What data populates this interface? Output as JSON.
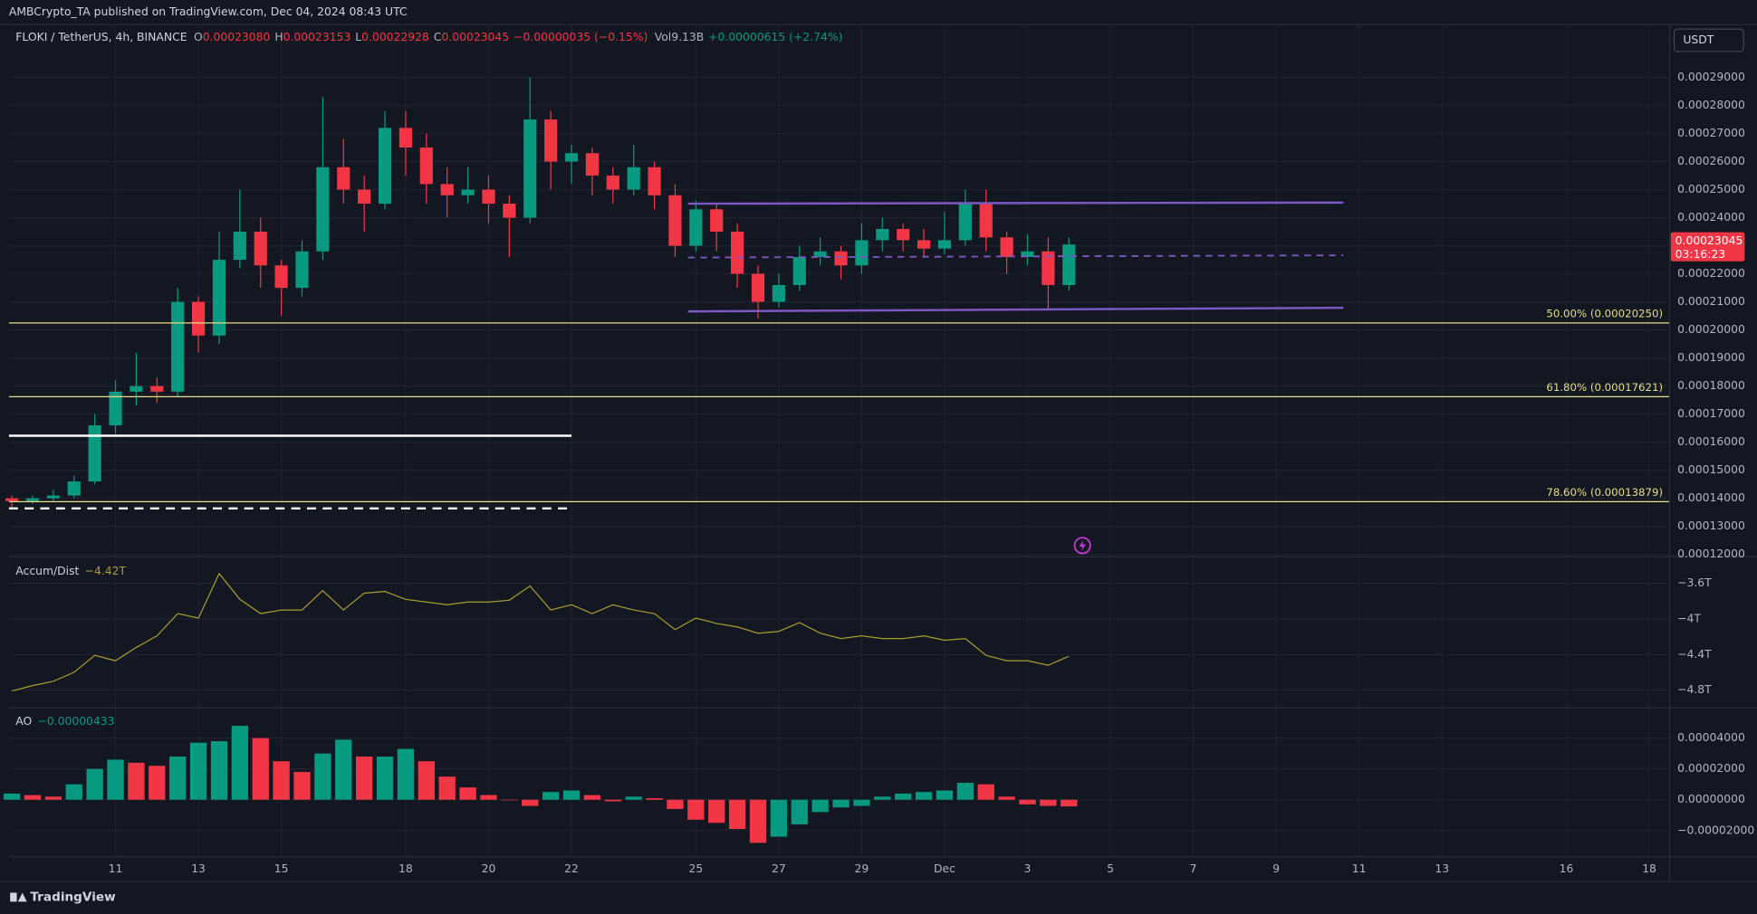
{
  "header": {
    "text": "AMBCrypto_TA published on TradingView.com, Dec 04, 2024 08:43 UTC"
  },
  "footer": {
    "brand": "TradingView"
  },
  "chart_data": [
    {
      "type": "candlestick",
      "symbol": "FLOKI / TetherUS, 4h, BINANCE",
      "ohlc": [
        {
          "key": "O",
          "value": "0.00023080"
        },
        {
          "key": "H",
          "value": "0.00023153"
        },
        {
          "key": "L",
          "value": "0.00022928"
        },
        {
          "key": "C",
          "value": "0.00023045"
        }
      ],
      "change": "−0.00000035 (−0.15%)",
      "volume": {
        "key": "Vol",
        "value": "9.13B",
        "change": "+0.00000615 (+2.74%)"
      },
      "currency": "USDT",
      "countdown": "03:16:23",
      "up_color": "#089981",
      "down_color": "#f23645",
      "x": [
        8.5,
        9,
        9.5,
        10,
        10.5,
        11,
        11.5,
        12,
        12.5,
        13,
        13.5,
        14,
        14.5,
        15,
        15.5,
        16,
        16.5,
        17,
        17.5,
        18,
        18.5,
        19,
        19.5,
        20,
        20.5,
        21,
        21.5,
        22,
        22.5,
        23,
        23.5,
        24,
        24.5,
        25,
        25.5,
        26,
        26.5,
        27,
        27.5,
        28,
        28.5,
        29,
        29.5,
        30,
        30.5,
        31,
        31.5,
        32,
        32.5,
        33,
        33.5,
        34
      ],
      "open": [
        0.00014,
        0.000139,
        0.00014,
        0.000141,
        0.000146,
        0.000166,
        0.000178,
        0.00018,
        0.000178,
        0.00021,
        0.000198,
        0.000225,
        0.000235,
        0.000223,
        0.000215,
        0.000228,
        0.000258,
        0.00025,
        0.000245,
        0.000272,
        0.000265,
        0.000252,
        0.000248,
        0.00025,
        0.000245,
        0.00024,
        0.000275,
        0.00026,
        0.000263,
        0.000255,
        0.00025,
        0.000258,
        0.000248,
        0.00023,
        0.000243,
        0.000235,
        0.00022,
        0.00021,
        0.000216,
        0.000226,
        0.000228,
        0.000223,
        0.000232,
        0.000236,
        0.000232,
        0.000229,
        0.000232,
        0.000245,
        0.000233,
        0.000226,
        0.000228,
        0.000216
      ],
      "high": [
        0.000141,
        0.000141,
        0.000143,
        0.000148,
        0.00017,
        0.000182,
        0.000192,
        0.000183,
        0.000215,
        0.000212,
        0.000235,
        0.00025,
        0.00024,
        0.000225,
        0.000232,
        0.000283,
        0.000268,
        0.000255,
        0.000278,
        0.000278,
        0.00027,
        0.000258,
        0.000258,
        0.000255,
        0.000248,
        0.00029,
        0.000278,
        0.000266,
        0.000265,
        0.000258,
        0.000266,
        0.00026,
        0.000252,
        0.000246,
        0.000245,
        0.000238,
        0.000223,
        0.00022,
        0.00023,
        0.000233,
        0.00023,
        0.000238,
        0.00024,
        0.000238,
        0.000236,
        0.000242,
        0.00025,
        0.00025,
        0.000235,
        0.000234,
        0.000233,
        0.000233
      ],
      "low": [
        0.000136,
        0.000138,
        0.000139,
        0.00014,
        0.000145,
        0.000163,
        0.000173,
        0.000174,
        0.000176,
        0.000192,
        0.000195,
        0.000222,
        0.000215,
        0.000205,
        0.000212,
        0.000225,
        0.000245,
        0.000235,
        0.000243,
        0.000255,
        0.000245,
        0.00024,
        0.000245,
        0.000238,
        0.000226,
        0.000238,
        0.00025,
        0.000252,
        0.000248,
        0.000245,
        0.000248,
        0.000243,
        0.000226,
        0.000228,
        0.000228,
        0.000215,
        0.000204,
        0.000208,
        0.000214,
        0.000223,
        0.000218,
        0.00022,
        0.000228,
        0.000228,
        0.000226,
        0.000227,
        0.00023,
        0.000228,
        0.00022,
        0.000223,
        0.000207,
        0.000214
      ],
      "close": [
        0.000139,
        0.00014,
        0.000141,
        0.000146,
        0.000166,
        0.000178,
        0.00018,
        0.000178,
        0.00021,
        0.000198,
        0.000225,
        0.000235,
        0.000223,
        0.000215,
        0.000228,
        0.000258,
        0.00025,
        0.000245,
        0.000272,
        0.000265,
        0.000252,
        0.000248,
        0.00025,
        0.000245,
        0.00024,
        0.000275,
        0.00026,
        0.000263,
        0.000255,
        0.00025,
        0.000258,
        0.000248,
        0.00023,
        0.000243,
        0.000235,
        0.00022,
        0.00021,
        0.000216,
        0.000226,
        0.000228,
        0.000223,
        0.000232,
        0.000236,
        0.000232,
        0.000229,
        0.000232,
        0.000245,
        0.000233,
        0.000226,
        0.000228,
        0.000216,
        0.00023045
      ],
      "xlim": [
        8.43,
        48.49
      ],
      "xticks": [
        11,
        13,
        15,
        18,
        20,
        22,
        25,
        27,
        29,
        {
          "value": 31,
          "label": "Dec"
        },
        {
          "value": 33,
          "label": "3"
        },
        {
          "value": 35,
          "label": "5"
        },
        {
          "value": 37,
          "label": "7"
        },
        {
          "value": 39,
          "label": "9"
        },
        {
          "value": 41,
          "label": "11"
        },
        {
          "value": 43,
          "label": "13"
        },
        {
          "value": 46,
          "label": "16"
        },
        {
          "value": 48,
          "label": "18"
        }
      ],
      "ylim": [
        0.0001192,
        0.0003088
      ],
      "yticks": [
        {
          "value": 0.00029,
          "label": "0.00029000"
        },
        {
          "value": 0.00028,
          "label": "0.00028000"
        },
        {
          "value": 0.00027,
          "label": "0.00027000"
        },
        {
          "value": 0.00026,
          "label": "0.00026000"
        },
        {
          "value": 0.00025,
          "label": "0.00025000"
        },
        {
          "value": 0.00024,
          "label": "0.00024000"
        },
        {
          "value": 0.00023,
          "label": "0.00023000"
        },
        {
          "value": 0.00022,
          "label": "0.00022000"
        },
        {
          "value": 0.00021,
          "label": "0.00021000"
        },
        {
          "value": 0.0002,
          "label": "0.00020000"
        },
        {
          "value": 0.00019,
          "label": "0.00019000"
        },
        {
          "value": 0.00018,
          "label": "0.00018000"
        },
        {
          "value": 0.00017,
          "label": "0.00017000"
        },
        {
          "value": 0.00016,
          "label": "0.00016000"
        },
        {
          "value": 0.00015,
          "label": "0.00015000"
        },
        {
          "value": 0.00014,
          "label": "0.00014000"
        },
        {
          "value": 0.00013,
          "label": "0.00013000"
        },
        {
          "value": 0.00012,
          "label": "0.00012000"
        }
      ],
      "grid": true,
      "fib_color": "#e8df86",
      "fib_levels": [
        {
          "label": "50.00% (0.00020250)",
          "price": 0.0002025
        },
        {
          "label": "61.80% (0.00017621)",
          "price": 0.00017621
        },
        {
          "label": "78.60% (0.00013879)",
          "price": 0.00013879
        }
      ],
      "channel": {
        "color": "#7e57c2",
        "x": [
          24.81,
          40.62
        ],
        "upper": [
          0.000245,
          0.0002454
        ],
        "middle": [
          0.0002258,
          0.0002266
        ],
        "lower": [
          0.0002066,
          0.0002079
        ]
      },
      "levels": [
        {
          "x": [
            8.43,
            22.0
          ],
          "price": 0.0001623,
          "style": "solid"
        },
        {
          "x": [
            8.43,
            22.0
          ],
          "price": 0.0001364,
          "style": "dashed"
        }
      ]
    },
    {
      "type": "line",
      "title": "Accum/Dist",
      "legend_value": "−4.42T",
      "color": "#a79c2c",
      "values": [
        -4.81,
        -4.75,
        -4.7,
        -4.6,
        -4.41,
        -4.47,
        -4.32,
        -4.19,
        -3.94,
        -3.99,
        -3.49,
        -3.78,
        -3.94,
        -3.9,
        -3.9,
        -3.68,
        -3.9,
        -3.71,
        -3.69,
        -3.78,
        -3.81,
        -3.84,
        -3.81,
        -3.81,
        -3.79,
        -3.63,
        -3.9,
        -3.84,
        -3.94,
        -3.84,
        -3.9,
        -3.94,
        -4.12,
        -3.99,
        -4.05,
        -4.09,
        -4.16,
        -4.14,
        -4.04,
        -4.16,
        -4.22,
        -4.19,
        -4.22,
        -4.22,
        -4.19,
        -4.24,
        -4.22,
        -4.41,
        -4.47,
        -4.47,
        -4.52,
        -4.42
      ],
      "ylim": [
        -5.0,
        -3.3
      ],
      "yticks": [
        {
          "value": -3.6,
          "label": "−3.6T"
        },
        {
          "value": -4,
          "label": "−4T"
        },
        {
          "value": -4.4,
          "label": "−4.4T"
        },
        {
          "value": -4.8,
          "label": "−4.8T"
        }
      ]
    },
    {
      "type": "bar",
      "title": "AO",
      "legend_value": "−0.00000433",
      "up_color": "#089981",
      "down_color": "#f23645",
      "values": [
        4e-06,
        3e-06,
        2e-06,
        1e-05,
        2e-05,
        2.6e-05,
        2.4e-05,
        2.2e-05,
        2.8e-05,
        3.7e-05,
        3.8e-05,
        4.8e-05,
        4e-05,
        2.5e-05,
        1.8e-05,
        3e-05,
        3.9e-05,
        2.8e-05,
        2.8e-05,
        3.3e-05,
        2.5e-05,
        1.5e-05,
        8e-06,
        3e-06,
        0,
        -4e-06,
        5e-06,
        6e-06,
        3e-06,
        -1e-06,
        2e-06,
        1e-06,
        -6e-06,
        -1.3e-05,
        -1.5e-05,
        -1.9e-05,
        -2.8e-05,
        -2.4e-05,
        -1.6e-05,
        -8e-06,
        -5e-06,
        -4e-06,
        2e-06,
        4e-06,
        5e-06,
        6e-06,
        1.1e-05,
        1e-05,
        2e-06,
        -3e-06,
        -4e-06,
        -4.33e-06
      ],
      "ylim": [
        -3.71e-05,
        5.96e-05
      ],
      "yticks": [
        {
          "value": 4e-05,
          "label": "0.00004000"
        },
        {
          "value": 2e-05,
          "label": "0.00002000"
        },
        {
          "value": 0,
          "label": "0.00000000"
        },
        {
          "value": -2e-05,
          "label": "−0.00002000"
        }
      ]
    }
  ]
}
